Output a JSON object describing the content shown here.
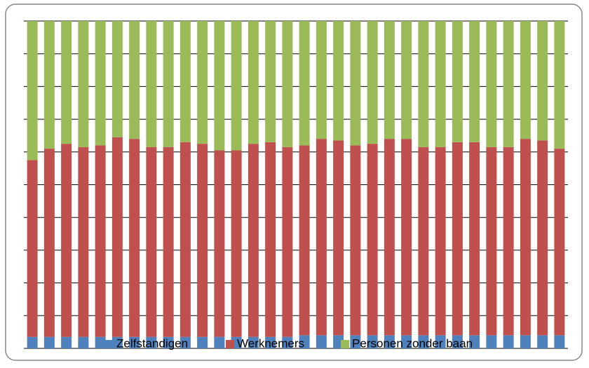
{
  "chart_data": {
    "type": "stacked_bar",
    "categories": [
      null,
      null,
      null,
      null,
      null,
      null,
      null,
      null,
      null,
      null,
      null,
      null,
      null,
      null,
      null,
      null,
      null,
      null,
      null,
      null,
      null,
      null,
      null,
      null,
      null,
      null,
      null,
      null,
      null,
      null,
      null,
      null
    ],
    "series": [
      {
        "name": "Zelfstandigen",
        "color": "#4f81bd",
        "values": [
          3.5,
          3.5,
          3.5,
          3.5,
          3.5,
          3.5,
          3.5,
          3.5,
          3.5,
          3.5,
          3.5,
          3.5,
          3.5,
          3.5,
          3.5,
          3.5,
          4,
          4,
          4,
          4,
          4,
          4,
          4,
          4,
          4,
          4,
          4,
          4,
          4,
          4,
          4,
          4
        ]
      },
      {
        "name": "Werknemers",
        "color": "#c0504d",
        "values": [
          54,
          57.5,
          59,
          58,
          58.5,
          61,
          60.5,
          58,
          58,
          59.5,
          59,
          57,
          57,
          59,
          59.5,
          58,
          58,
          60,
          59.5,
          58,
          58.5,
          60,
          60,
          57.5,
          57.5,
          59,
          59,
          57.5,
          57.5,
          60,
          59.5,
          57
        ]
      },
      {
        "name": "Personen zonder baan",
        "color": "#9bbb59",
        "values": [
          42.5,
          39,
          37.5,
          38.5,
          38,
          35.5,
          36,
          38.5,
          38.5,
          37,
          37.5,
          39.5,
          39.5,
          37.5,
          37,
          38.5,
          38,
          36,
          36.5,
          38,
          37.5,
          36,
          36,
          38.5,
          38.5,
          37,
          37,
          38.5,
          38.5,
          36,
          36.5,
          39
        ]
      }
    ],
    "ylim": [
      0,
      100
    ],
    "yticks": [
      0,
      10,
      20,
      30,
      40,
      50,
      60,
      70,
      80,
      90,
      100
    ],
    "grid": true,
    "legend": "bottom"
  }
}
